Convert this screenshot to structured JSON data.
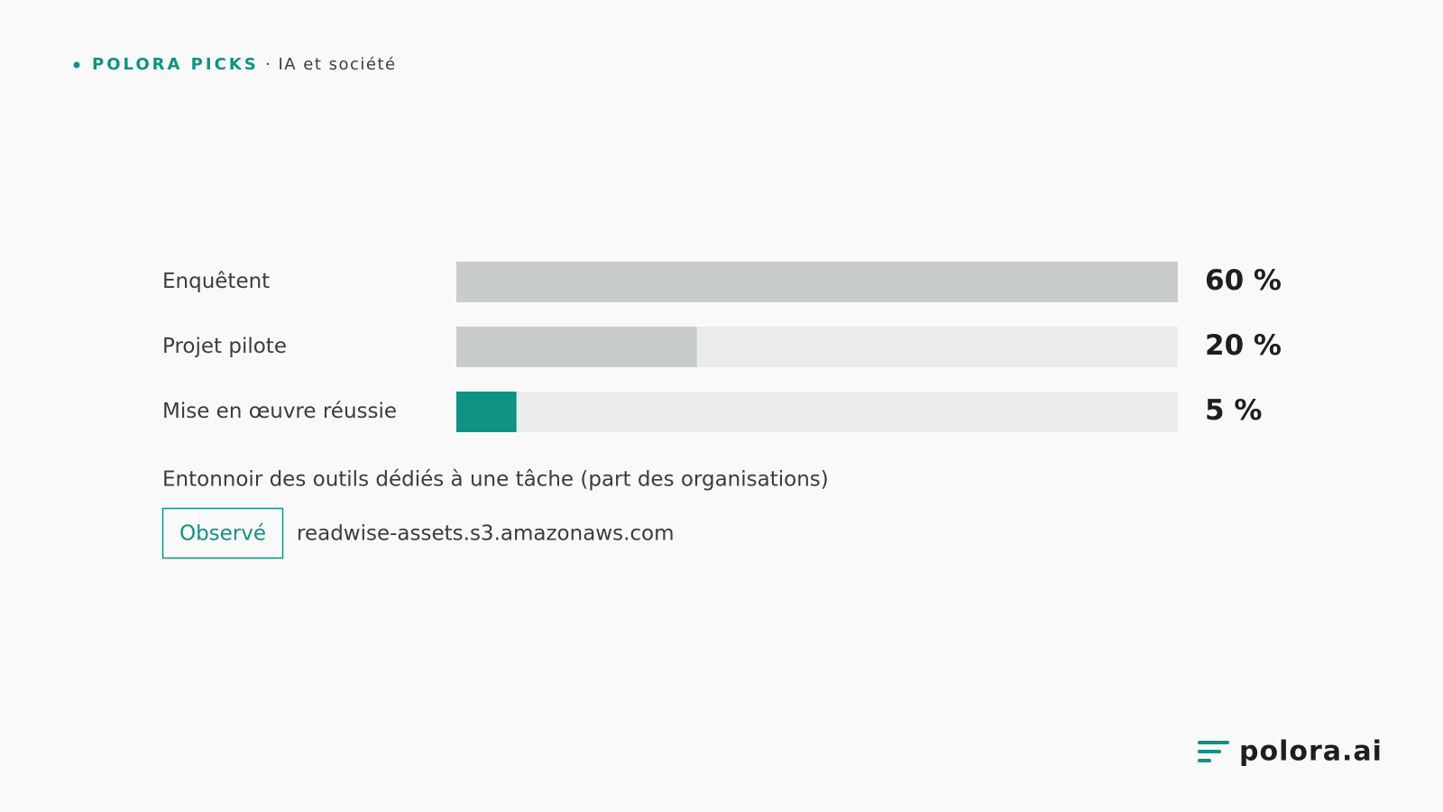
{
  "header": {
    "brand": "POLORA PICKS",
    "topic": "· IA et société"
  },
  "chart_data": {
    "type": "bar",
    "orientation": "horizontal",
    "categories": [
      "Enquêtent",
      "Projet pilote",
      "Mise en œuvre réussie"
    ],
    "values": [
      60,
      20,
      5
    ],
    "value_labels": [
      "60 %",
      "20 %",
      "5 %"
    ],
    "colors": [
      "#c8cdcc",
      "#c8cdcc",
      "#0e9384"
    ],
    "track_color": "#e9eceb",
    "xlim": [
      0,
      60
    ],
    "caption": "Entonnoir des outils dédiés à une tâche (part des organisations)"
  },
  "source": {
    "badge": "Observé",
    "domain": "readwise-assets.s3.amazonaws.com"
  },
  "footer": {
    "logo": "polora.ai"
  }
}
